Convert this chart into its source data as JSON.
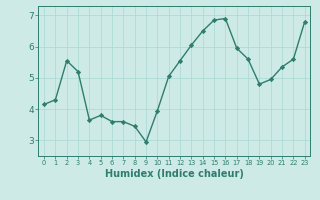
{
  "x": [
    0,
    1,
    2,
    3,
    4,
    5,
    6,
    7,
    8,
    9,
    10,
    11,
    12,
    13,
    14,
    15,
    16,
    17,
    18,
    19,
    20,
    21,
    22,
    23
  ],
  "y": [
    4.15,
    4.3,
    5.55,
    5.2,
    3.65,
    3.8,
    3.6,
    3.6,
    3.45,
    2.95,
    3.95,
    5.05,
    5.55,
    6.05,
    6.5,
    6.85,
    6.9,
    5.95,
    5.6,
    4.8,
    4.95,
    5.35,
    5.6,
    6.8
  ],
  "line_color": "#2e7d6e",
  "marker": "D",
  "markersize": 2.2,
  "linewidth": 1.0,
  "xlabel": "Humidex (Indice chaleur)",
  "xlabel_fontsize": 7,
  "bg_color": "#ceeae6",
  "grid_color": "#a8d8d2",
  "axis_color": "#2e7d6e",
  "tick_color": "#2e7d6e",
  "ylim": [
    2.5,
    7.3
  ],
  "xlim": [
    -0.5,
    23.5
  ],
  "yticks": [
    3,
    4,
    5,
    6,
    7
  ],
  "xticks": [
    0,
    1,
    2,
    3,
    4,
    5,
    6,
    7,
    8,
    9,
    10,
    11,
    12,
    13,
    14,
    15,
    16,
    17,
    18,
    19,
    20,
    21,
    22,
    23
  ],
  "xtick_fontsize": 4.8,
  "ytick_fontsize": 6.5
}
